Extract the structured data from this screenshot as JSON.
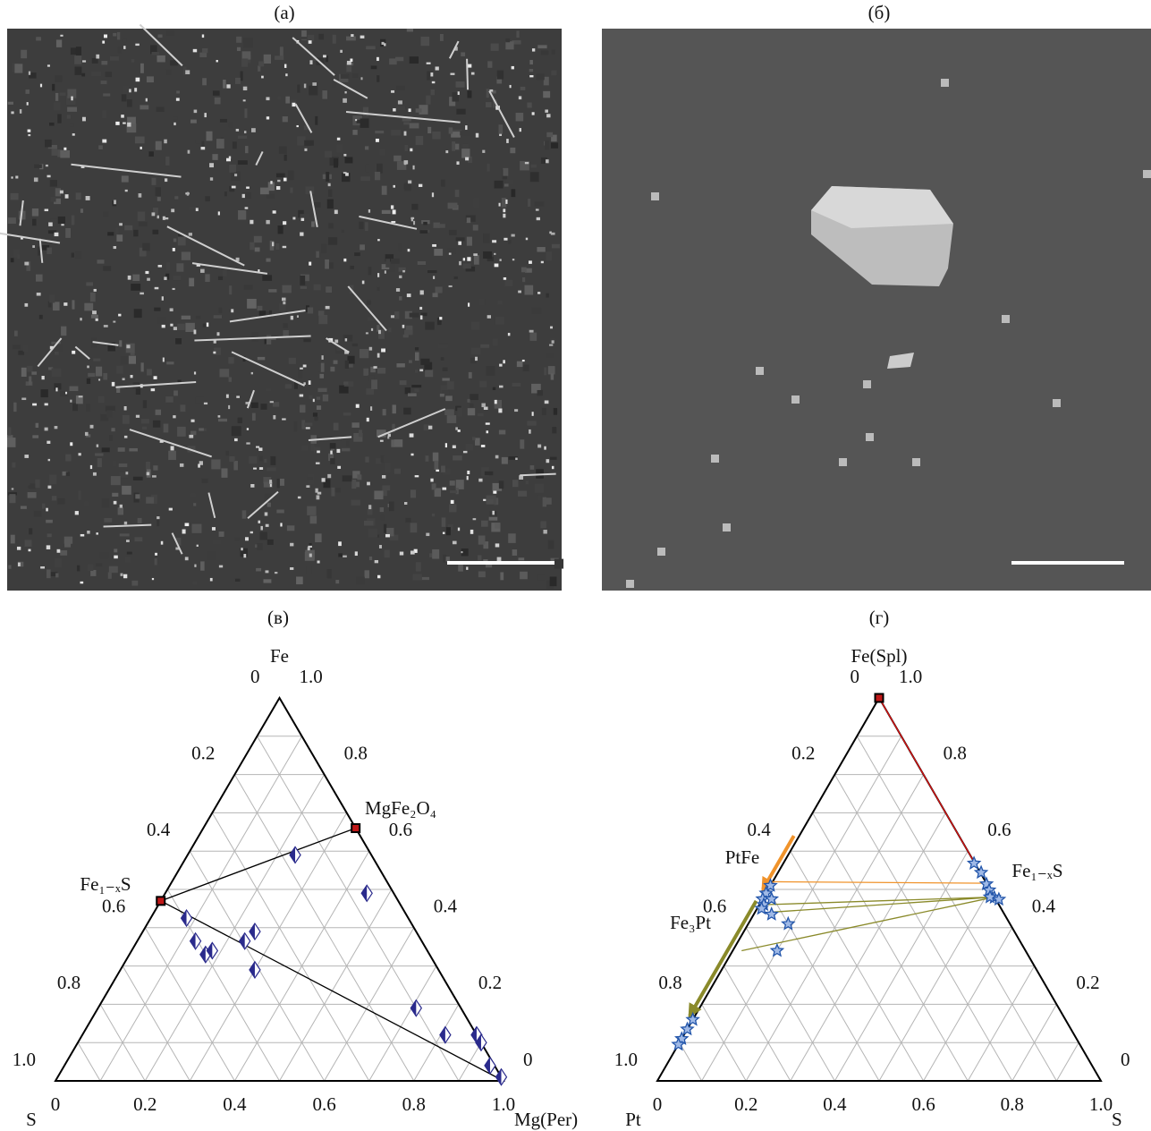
{
  "panels": [
    {
      "label": "(а)"
    },
    {
      "label": "(б)"
    }
  ],
  "chart_data": [
    {
      "type": "ternary",
      "label": "(в)",
      "corners": {
        "top": "Fe",
        "left": "S",
        "right": "Mg(Per)"
      },
      "grid_divisions": 10,
      "left_ticks": [
        0,
        0.2,
        0.4,
        0.6,
        0.8,
        {
          "value": 1,
          "label": "1.0"
        }
      ],
      "right_ticks": [
        0,
        0.2,
        0.4,
        0.6,
        0.8,
        {
          "value": 1,
          "label": "1.0"
        }
      ],
      "bottom_ticks": [
        0,
        0.2,
        0.4,
        0.6,
        0.8,
        {
          "value": 1,
          "label": "1.0"
        }
      ],
      "series": [
        {
          "marker": "diamond",
          "color": "#2a2a8c",
          "top": [
            0.59,
            0.425,
            0.365,
            0.33,
            0.34,
            0.365,
            0.39,
            0.29,
            0.49,
            0.19,
            0.12,
            0.12,
            0.1,
            0.04,
            0.01
          ],
          "right": [
            0.24,
            0.08,
            0.13,
            0.17,
            0.18,
            0.24,
            0.25,
            0.3,
            0.45,
            0.71,
            0.81,
            0.88,
            0.9,
            0.95,
            0.99
          ]
        }
      ],
      "phase_points": [
        {
          "top": 0.66,
          "right": 0.34
        },
        {
          "top": 0.47,
          "right": 0
        }
      ],
      "lines": [
        {
          "color": "#000000",
          "top": [
            0.47,
            0.66
          ],
          "right": [
            0,
            0.34
          ]
        },
        {
          "color": "#000000",
          "top": [
            0.47,
            0
          ],
          "right": [
            0,
            1
          ]
        }
      ],
      "annotations": [
        {
          "text": "MgFe₂O₄"
        },
        {
          "text": "Fe₁₋ₓS"
        }
      ]
    },
    {
      "type": "ternary",
      "label": "(г)",
      "corners": {
        "top": "Fe(Spl)",
        "left": "Pt",
        "right": "S"
      },
      "grid_divisions": 10,
      "left_ticks": [
        0,
        0.2,
        0.4,
        0.6,
        0.8,
        {
          "value": 1,
          "label": "1.0"
        }
      ],
      "right_ticks": [
        0,
        0.2,
        0.4,
        0.6,
        0.8,
        {
          "value": 1,
          "label": "1.0"
        }
      ],
      "bottom_ticks": [
        0,
        0.2,
        0.4,
        0.6,
        0.8,
        {
          "value": 1,
          "label": "1.0"
        }
      ],
      "series": [
        {
          "marker": "star",
          "color": "#2255aa",
          "top": [
            0.51,
            0.49,
            0.475,
            0.46,
            0.435,
            0.41,
            0.34,
            0.475,
            0.45,
            0.16,
            0.135,
            0.11,
            0.095,
            0.568,
            0.544,
            0.514,
            0.498,
            0.479,
            0.474,
            0.48
          ],
          "right": [
            0,
            0,
            0,
            0.01,
            0.04,
            0.09,
            0.1,
            0.02,
            0.01,
            0,
            0,
            0,
            0,
            0.43,
            0.458,
            0.485,
            0.499,
            0.52,
            0.533,
            0.51
          ]
        }
      ],
      "phase_points": [
        {
          "top": 1,
          "right": 0
        }
      ],
      "lines": [
        {
          "color": "#dd1111",
          "top": [
            1,
            0.57
          ],
          "right": [
            0,
            0.43
          ]
        },
        {
          "color": "#f0932b",
          "top": [
            0.52,
            0.516
          ],
          "right": [
            0,
            0.488
          ]
        },
        {
          "color": "#8a8a2a",
          "top": [
            0.46,
            0.48
          ],
          "right": [
            0.01,
            0.52
          ]
        },
        {
          "color": "#8a8a2a",
          "top": [
            0.44,
            0.48
          ],
          "right": [
            0.03,
            0.52
          ]
        },
        {
          "color": "#8a8a2a",
          "top": [
            0.34,
            0.48
          ],
          "right": [
            0.02,
            0.52
          ]
        },
        {
          "color": "#f0932b",
          "arrow": true,
          "top": [
            0.64,
            0.5
          ],
          "right": [
            0,
            0
          ]
        },
        {
          "color": "#8a8a2a",
          "arrow": true,
          "top": [
            0.47,
            0.17
          ],
          "right": [
            0,
            0
          ]
        }
      ],
      "annotations": [
        {
          "text": "PtFe"
        },
        {
          "text": "Fe₃Pt"
        },
        {
          "text": "Fe₁₋ₓS"
        }
      ]
    }
  ]
}
